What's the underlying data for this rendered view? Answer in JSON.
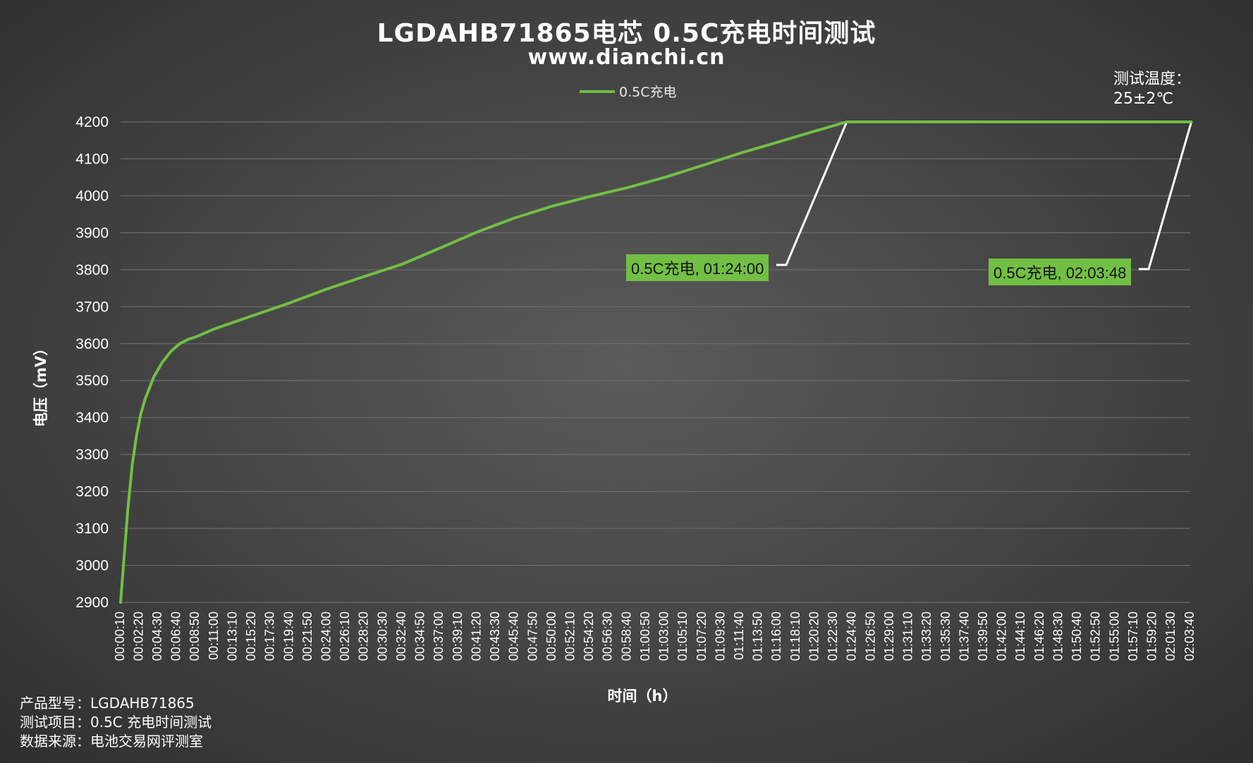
{
  "header": {
    "title": "LGDAHB71865电芯 0.5C充电时间测试",
    "subtitle": "www.dianchi.cn"
  },
  "legend": {
    "label": "0.5C充电"
  },
  "test_temp": {
    "label": "测试温度：",
    "value": "25±2℃"
  },
  "callouts": [
    {
      "label": "0.5C充电, 01:24:00"
    },
    {
      "label": "0.5C充电, 02:03:48"
    }
  ],
  "info": {
    "model": "产品型号：LGDAHB71865",
    "item": "测试项目：0.5C 充电时间测试",
    "source": "数据来源：电池交易网评测室"
  },
  "colors": {
    "series": "#72bf44",
    "leader": "#ffffff",
    "grid": "#6c6c6c"
  },
  "chart_data": {
    "type": "line",
    "title": "LGDAHB71865电芯 0.5C充电时间测试",
    "xlabel": "时间（h）",
    "ylabel": "电压（mV）",
    "ylim": [
      2900,
      4200
    ],
    "yticks": [
      2900,
      3000,
      3100,
      3200,
      3300,
      3400,
      3500,
      3600,
      3700,
      3800,
      3900,
      4000,
      4100,
      4200
    ],
    "xlim": [
      "00:00:10",
      "02:03:40"
    ],
    "x_tick_labels": [
      "00:00:10",
      "00:02:20",
      "00:04:30",
      "00:06:40",
      "00:08:50",
      "00:11:00",
      "00:13:10",
      "00:15:20",
      "00:17:30",
      "00:19:40",
      "00:21:50",
      "00:24:00",
      "00:26:10",
      "00:28:20",
      "00:30:30",
      "00:32:40",
      "00:34:50",
      "00:37:00",
      "00:39:10",
      "00:41:20",
      "00:43:30",
      "00:45:40",
      "00:47:50",
      "00:50:00",
      "00:52:10",
      "00:54:20",
      "00:56:30",
      "00:58:40",
      "01:00:50",
      "01:03:00",
      "01:05:10",
      "01:07:20",
      "01:09:30",
      "01:11:40",
      "01:13:50",
      "01:16:00",
      "01:18:10",
      "01:20:20",
      "01:22:30",
      "01:24:40",
      "01:26:50",
      "01:29:00",
      "01:31:10",
      "01:33:20",
      "01:35:30",
      "01:37:40",
      "01:39:50",
      "01:42:00",
      "01:44:10",
      "01:46:20",
      "01:48:30",
      "01:50:40",
      "01:52:50",
      "01:55:00",
      "01:57:10",
      "01:59:20",
      "02:01:30",
      "02:03:40"
    ],
    "grid": true,
    "legend_position": "top-center",
    "series": [
      {
        "name": "0.5C充电",
        "x": [
          "00:00:10",
          "00:00:30",
          "00:01:00",
          "00:01:30",
          "00:02:00",
          "00:02:30",
          "00:03:00",
          "00:04:00",
          "00:05:00",
          "00:06:00",
          "00:07:00",
          "00:08:00",
          "00:08:50",
          "00:11:00",
          "00:15:20",
          "00:19:40",
          "00:24:00",
          "00:28:20",
          "00:32:40",
          "00:37:00",
          "00:41:20",
          "00:45:40",
          "00:50:00",
          "00:54:20",
          "00:58:40",
          "01:03:00",
          "01:07:20",
          "01:11:40",
          "01:16:00",
          "01:20:20",
          "01:24:00",
          "01:28:00",
          "01:40:00",
          "01:50:00",
          "02:00:00",
          "02:03:48"
        ],
        "values": [
          2900,
          3000,
          3150,
          3270,
          3350,
          3410,
          3450,
          3510,
          3550,
          3580,
          3600,
          3612,
          3618,
          3640,
          3675,
          3710,
          3748,
          3782,
          3815,
          3858,
          3902,
          3940,
          3972,
          3998,
          4022,
          4050,
          4082,
          4115,
          4145,
          4175,
          4200,
          4200,
          4200,
          4200,
          4200,
          4200
        ]
      }
    ],
    "annotations": [
      {
        "text": "0.5C充电, 01:24:00",
        "x": "01:24:00",
        "y": 4200
      },
      {
        "text": "0.5C充电, 02:03:48",
        "x": "02:03:48",
        "y": 4200
      }
    ]
  }
}
